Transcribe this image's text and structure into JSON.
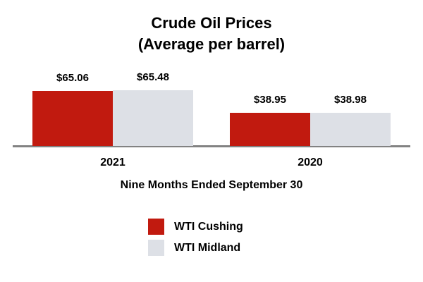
{
  "title": {
    "line1": "Crude Oil Prices",
    "line2": "(Average per barrel)"
  },
  "chart_data": {
    "type": "bar",
    "categories": [
      "2021",
      "2020"
    ],
    "series": [
      {
        "name": "WTI Cushing",
        "color": "#c11a0f",
        "values": [
          65.06,
          38.95
        ],
        "labels": [
          "$65.06",
          "$38.95"
        ]
      },
      {
        "name": "WTI Midland",
        "color": "#dde0e6",
        "values": [
          65.48,
          38.98
        ],
        "labels": [
          "$65.48",
          "$38.98"
        ]
      }
    ],
    "title": "Crude Oil Prices (Average per barrel)",
    "xlabel": "Nine Months Ended September 30",
    "ylabel": "",
    "ylim": [
      0,
      70
    ],
    "grid": false,
    "legend_position": "bottom"
  }
}
